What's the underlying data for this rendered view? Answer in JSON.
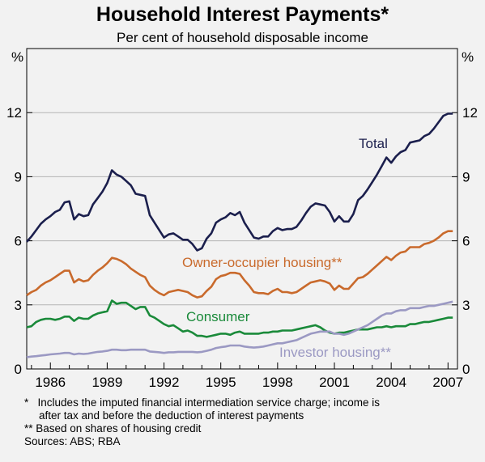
{
  "chart_data": {
    "type": "line",
    "title": "Household Interest Payments*",
    "subtitle": "Per cent of household disposable income",
    "ylabel_left": "%",
    "ylabel_right": "%",
    "ylim": [
      0,
      15
    ],
    "yticks": [
      0,
      3,
      6,
      9,
      12
    ],
    "xlim": [
      1984.75,
      2007.5
    ],
    "xticks": [
      1986,
      1989,
      1992,
      1995,
      1998,
      2001,
      2004,
      2007
    ],
    "grid": "horizontal",
    "series": [
      {
        "name": "Total",
        "color": "#1b1f4d",
        "x": [
          1984.75,
          1985.0,
          1985.25,
          1985.5,
          1985.75,
          1986.0,
          1986.25,
          1986.5,
          1986.75,
          1987.0,
          1987.25,
          1987.5,
          1987.75,
          1988.0,
          1988.25,
          1988.5,
          1988.75,
          1989.0,
          1989.25,
          1989.5,
          1989.75,
          1990.0,
          1990.25,
          1990.5,
          1990.75,
          1991.0,
          1991.25,
          1991.5,
          1991.75,
          1992.0,
          1992.25,
          1992.5,
          1992.75,
          1993.0,
          1993.25,
          1993.5,
          1993.75,
          1994.0,
          1994.25,
          1994.5,
          1994.75,
          1995.0,
          1995.25,
          1995.5,
          1995.75,
          1996.0,
          1996.25,
          1996.5,
          1996.75,
          1997.0,
          1997.25,
          1997.5,
          1997.75,
          1998.0,
          1998.25,
          1998.5,
          1998.75,
          1999.0,
          1999.25,
          1999.5,
          1999.75,
          2000.0,
          2000.25,
          2000.5,
          2000.75,
          2001.0,
          2001.25,
          2001.5,
          2001.75,
          2002.0,
          2002.25,
          2002.5,
          2002.75,
          2003.0,
          2003.25,
          2003.5,
          2003.75,
          2004.0,
          2004.25,
          2004.5,
          2004.75,
          2005.0,
          2005.25,
          2005.5,
          2005.75,
          2006.0,
          2006.25,
          2006.5,
          2006.75,
          2007.0,
          2007.25
        ],
        "values": [
          5.95,
          6.2,
          6.5,
          6.8,
          7.0,
          7.15,
          7.35,
          7.45,
          7.8,
          7.85,
          7.0,
          7.25,
          7.15,
          7.2,
          7.7,
          8.0,
          8.3,
          8.7,
          9.3,
          9.1,
          9.0,
          8.8,
          8.6,
          8.2,
          8.15,
          8.1,
          7.2,
          6.85,
          6.5,
          6.15,
          6.3,
          6.35,
          6.2,
          6.05,
          6.05,
          5.85,
          5.55,
          5.65,
          6.1,
          6.35,
          6.85,
          7.0,
          7.1,
          7.3,
          7.2,
          7.35,
          6.85,
          6.5,
          6.15,
          6.1,
          6.2,
          6.2,
          6.45,
          6.6,
          6.5,
          6.55,
          6.55,
          6.65,
          6.95,
          7.3,
          7.6,
          7.75,
          7.7,
          7.65,
          7.35,
          6.9,
          7.15,
          6.9,
          6.9,
          7.25,
          7.9,
          8.1,
          8.4,
          8.75,
          9.1,
          9.5,
          9.9,
          9.65,
          9.95,
          10.15,
          10.25,
          10.6,
          10.65,
          10.7,
          10.9,
          11.0,
          11.25,
          11.55,
          11.85,
          11.95,
          11.95
        ]
      },
      {
        "name": "Owner-occupier housing**",
        "color": "#c96a2c",
        "x": [
          1984.75,
          1985.0,
          1985.25,
          1985.5,
          1985.75,
          1986.0,
          1986.25,
          1986.5,
          1986.75,
          1987.0,
          1987.25,
          1987.5,
          1987.75,
          1988.0,
          1988.25,
          1988.5,
          1988.75,
          1989.0,
          1989.25,
          1989.5,
          1989.75,
          1990.0,
          1990.25,
          1990.5,
          1990.75,
          1991.0,
          1991.25,
          1991.5,
          1991.75,
          1992.0,
          1992.25,
          1992.5,
          1992.75,
          1993.0,
          1993.25,
          1993.5,
          1993.75,
          1994.0,
          1994.25,
          1994.5,
          1994.75,
          1995.0,
          1995.25,
          1995.5,
          1995.75,
          1996.0,
          1996.25,
          1996.5,
          1996.75,
          1997.0,
          1997.25,
          1997.5,
          1997.75,
          1998.0,
          1998.25,
          1998.5,
          1998.75,
          1999.0,
          1999.25,
          1999.5,
          1999.75,
          2000.0,
          2000.25,
          2000.5,
          2000.75,
          2001.0,
          2001.25,
          2001.5,
          2001.75,
          2002.0,
          2002.25,
          2002.5,
          2002.75,
          2003.0,
          2003.25,
          2003.5,
          2003.75,
          2004.0,
          2004.25,
          2004.5,
          2004.75,
          2005.0,
          2005.25,
          2005.5,
          2005.75,
          2006.0,
          2006.25,
          2006.5,
          2006.75,
          2007.0,
          2007.25
        ],
        "values": [
          3.45,
          3.6,
          3.7,
          3.9,
          4.05,
          4.15,
          4.3,
          4.45,
          4.6,
          4.6,
          4.05,
          4.2,
          4.1,
          4.15,
          4.4,
          4.6,
          4.75,
          4.95,
          5.2,
          5.15,
          5.05,
          4.9,
          4.7,
          4.55,
          4.4,
          4.3,
          3.9,
          3.7,
          3.55,
          3.45,
          3.6,
          3.65,
          3.7,
          3.65,
          3.6,
          3.45,
          3.35,
          3.4,
          3.65,
          3.85,
          4.2,
          4.35,
          4.4,
          4.5,
          4.5,
          4.45,
          4.15,
          3.9,
          3.6,
          3.55,
          3.55,
          3.5,
          3.65,
          3.75,
          3.6,
          3.6,
          3.55,
          3.6,
          3.75,
          3.9,
          4.05,
          4.1,
          4.15,
          4.1,
          4.0,
          3.7,
          3.9,
          3.75,
          3.75,
          4.0,
          4.25,
          4.3,
          4.45,
          4.65,
          4.85,
          5.05,
          5.25,
          5.1,
          5.3,
          5.45,
          5.5,
          5.7,
          5.7,
          5.7,
          5.85,
          5.9,
          6.0,
          6.15,
          6.35,
          6.45,
          6.45
        ]
      },
      {
        "name": "Consumer",
        "color": "#1a8a3a",
        "x": [
          1984.75,
          1985.0,
          1985.25,
          1985.5,
          1985.75,
          1986.0,
          1986.25,
          1986.5,
          1986.75,
          1987.0,
          1987.25,
          1987.5,
          1987.75,
          1988.0,
          1988.25,
          1988.5,
          1988.75,
          1989.0,
          1989.25,
          1989.5,
          1989.75,
          1990.0,
          1990.25,
          1990.5,
          1990.75,
          1991.0,
          1991.25,
          1991.5,
          1991.75,
          1992.0,
          1992.25,
          1992.5,
          1992.75,
          1993.0,
          1993.25,
          1993.5,
          1993.75,
          1994.0,
          1994.25,
          1994.5,
          1994.75,
          1995.0,
          1995.25,
          1995.5,
          1995.75,
          1996.0,
          1996.25,
          1996.5,
          1996.75,
          1997.0,
          1997.25,
          1997.5,
          1997.75,
          1998.0,
          1998.25,
          1998.5,
          1998.75,
          1999.0,
          1999.25,
          1999.5,
          1999.75,
          2000.0,
          2000.25,
          2000.5,
          2000.75,
          2001.0,
          2001.25,
          2001.5,
          2001.75,
          2002.0,
          2002.25,
          2002.5,
          2002.75,
          2003.0,
          2003.25,
          2003.5,
          2003.75,
          2004.0,
          2004.25,
          2004.5,
          2004.75,
          2005.0,
          2005.25,
          2005.5,
          2005.75,
          2006.0,
          2006.25,
          2006.5,
          2006.75,
          2007.0,
          2007.25
        ],
        "values": [
          1.95,
          2.0,
          2.2,
          2.3,
          2.35,
          2.35,
          2.3,
          2.35,
          2.45,
          2.45,
          2.25,
          2.4,
          2.35,
          2.35,
          2.5,
          2.6,
          2.65,
          2.7,
          3.2,
          3.05,
          3.1,
          3.1,
          2.95,
          2.8,
          2.9,
          2.9,
          2.5,
          2.4,
          2.25,
          2.1,
          2.0,
          2.05,
          1.9,
          1.75,
          1.8,
          1.7,
          1.55,
          1.55,
          1.5,
          1.55,
          1.6,
          1.65,
          1.65,
          1.6,
          1.7,
          1.75,
          1.65,
          1.65,
          1.65,
          1.65,
          1.7,
          1.7,
          1.75,
          1.75,
          1.8,
          1.8,
          1.8,
          1.85,
          1.9,
          1.95,
          2.0,
          2.05,
          1.95,
          1.8,
          1.7,
          1.65,
          1.7,
          1.7,
          1.75,
          1.8,
          1.85,
          1.85,
          1.85,
          1.9,
          1.95,
          1.95,
          2.0,
          1.95,
          2.0,
          2.0,
          2.0,
          2.1,
          2.1,
          2.15,
          2.2,
          2.2,
          2.25,
          2.3,
          2.35,
          2.4,
          2.4
        ]
      },
      {
        "name": "Investor housing**",
        "color": "#9b99c3",
        "x": [
          1984.75,
          1985.0,
          1985.25,
          1985.5,
          1985.75,
          1986.0,
          1986.25,
          1986.5,
          1986.75,
          1987.0,
          1987.25,
          1987.5,
          1987.75,
          1988.0,
          1988.25,
          1988.5,
          1988.75,
          1989.0,
          1989.25,
          1989.5,
          1989.75,
          1990.0,
          1990.25,
          1990.5,
          1990.75,
          1991.0,
          1991.25,
          1991.5,
          1991.75,
          1992.0,
          1992.25,
          1992.5,
          1992.75,
          1993.0,
          1993.25,
          1993.5,
          1993.75,
          1994.0,
          1994.25,
          1994.5,
          1994.75,
          1995.0,
          1995.25,
          1995.5,
          1995.75,
          1996.0,
          1996.25,
          1996.5,
          1996.75,
          1997.0,
          1997.25,
          1997.5,
          1997.75,
          1998.0,
          1998.25,
          1998.5,
          1998.75,
          1999.0,
          1999.25,
          1999.5,
          1999.75,
          2000.0,
          2000.25,
          2000.5,
          2000.75,
          2001.0,
          2001.25,
          2001.5,
          2001.75,
          2002.0,
          2002.25,
          2002.5,
          2002.75,
          2003.0,
          2003.25,
          2003.5,
          2003.75,
          2004.0,
          2004.25,
          2004.5,
          2004.75,
          2005.0,
          2005.25,
          2005.5,
          2005.75,
          2006.0,
          2006.25,
          2006.5,
          2006.75,
          2007.0,
          2007.25
        ],
        "values": [
          0.55,
          0.58,
          0.6,
          0.63,
          0.65,
          0.68,
          0.7,
          0.72,
          0.75,
          0.75,
          0.68,
          0.72,
          0.7,
          0.72,
          0.76,
          0.8,
          0.82,
          0.85,
          0.9,
          0.9,
          0.88,
          0.88,
          0.9,
          0.9,
          0.9,
          0.9,
          0.82,
          0.8,
          0.78,
          0.75,
          0.78,
          0.78,
          0.8,
          0.8,
          0.8,
          0.8,
          0.78,
          0.8,
          0.85,
          0.9,
          0.98,
          1.02,
          1.05,
          1.1,
          1.1,
          1.1,
          1.05,
          1.02,
          1.0,
          1.02,
          1.05,
          1.1,
          1.15,
          1.2,
          1.2,
          1.25,
          1.3,
          1.35,
          1.45,
          1.55,
          1.65,
          1.7,
          1.75,
          1.75,
          1.75,
          1.65,
          1.65,
          1.6,
          1.65,
          1.75,
          1.85,
          1.95,
          2.05,
          2.2,
          2.35,
          2.5,
          2.6,
          2.6,
          2.7,
          2.75,
          2.75,
          2.85,
          2.85,
          2.85,
          2.9,
          2.95,
          2.95,
          3.0,
          3.05,
          3.1,
          3.15
        ]
      }
    ]
  },
  "labels": {
    "total": "Total",
    "owner": "Owner-occupier housing**",
    "consumer": "Consumer",
    "investor": "Investor housing**"
  },
  "notes": {
    "fn1_marker": "*",
    "fn1_line1": "Includes the imputed financial intermediation service charge; income is",
    "fn1_line2": "after tax and before the deduction of interest payments",
    "fn2": "** Based on shares of housing credit",
    "sources": "Sources: ABS; RBA"
  }
}
